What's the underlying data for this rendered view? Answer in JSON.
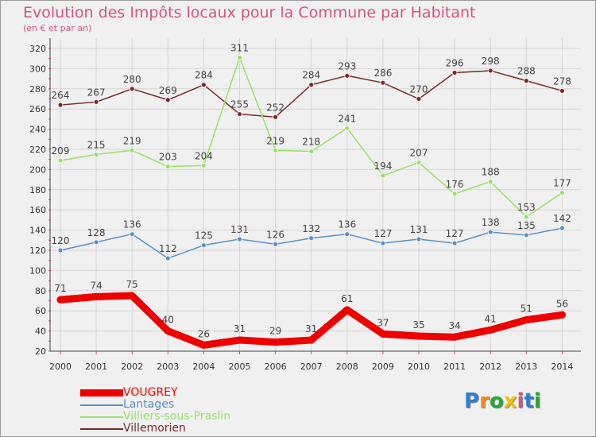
{
  "chart_data": {
    "type": "line",
    "title": "Evolution des Impôts locaux pour la Commune par Habitant",
    "subtitle": "(en € et par an)",
    "x": [
      "2000",
      "2001",
      "2002",
      "2003",
      "2004",
      "2005",
      "2006",
      "2007",
      "2008",
      "2009",
      "2010",
      "2011",
      "2012",
      "2013",
      "2014"
    ],
    "yticks": [
      20,
      40,
      60,
      80,
      100,
      120,
      140,
      160,
      180,
      200,
      220,
      240,
      260,
      280,
      300,
      320
    ],
    "ylim": [
      20,
      320
    ],
    "grid": true,
    "legend_position": "bottom-left",
    "series": [
      {
        "name": "VOUGREY",
        "color": "#ee0000",
        "values": [
          71,
          74,
          75,
          40,
          26,
          31,
          29,
          31,
          61,
          37,
          35,
          34,
          41,
          51,
          56
        ]
      },
      {
        "name": "Lantages",
        "color": "#5b8fc4",
        "values": [
          120,
          128,
          136,
          112,
          125,
          131,
          126,
          132,
          136,
          127,
          131,
          127,
          138,
          135,
          142
        ]
      },
      {
        "name": "Villiers-sous-Praslin",
        "color": "#99e166",
        "values": [
          209,
          215,
          219,
          203,
          204,
          311,
          219,
          218,
          241,
          194,
          207,
          176,
          188,
          153,
          177
        ]
      },
      {
        "name": "Villemorien",
        "color": "#7a2a2a",
        "values": [
          264,
          267,
          280,
          269,
          284,
          255,
          252,
          284,
          293,
          286,
          270,
          296,
          298,
          288,
          278
        ]
      }
    ]
  },
  "logo": {
    "text": "Proxiti",
    "letter_colors": [
      "#2f7fd0",
      "#f08a1e",
      "#28a838",
      "#f0c010",
      "#d2567a",
      "#2f7fd0",
      "#28a838"
    ]
  }
}
